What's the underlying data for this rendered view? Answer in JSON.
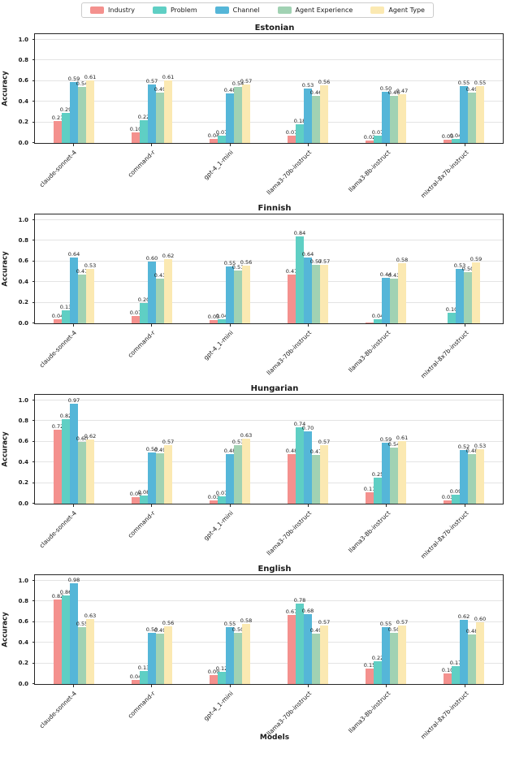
{
  "legend": {
    "entries": [
      {
        "label": "Industry",
        "color": "#F4918E"
      },
      {
        "label": "Problem",
        "color": "#5FCFC4"
      },
      {
        "label": "Channel",
        "color": "#55B6D8"
      },
      {
        "label": "Agent Experience",
        "color": "#A1D2B3"
      },
      {
        "label": "Agent Type",
        "color": "#FBE9B2"
      }
    ]
  },
  "figure": {
    "xlabel": "Models",
    "ylabel": "Accuracy",
    "ytick_labels": [
      "0.0",
      "0.2",
      "0.4",
      "0.6",
      "0.8",
      "1.0"
    ]
  },
  "chart_data": [
    {
      "type": "bar",
      "title": "Estonian",
      "xlabel": "",
      "ylabel": "Accuracy",
      "ylim": [
        0,
        1.05
      ],
      "grid": true,
      "legend_position": "top-center-outside",
      "categories": [
        "claude-sonnet-4",
        "command-r",
        "gpt-4_1-mini",
        "llama3-70b-instruct",
        "llama3-8b-instruct",
        "mixtral-8x7b-instruct"
      ],
      "series": [
        {
          "name": "Industry",
          "color": "#F4918E",
          "values": [
            0.21,
            0.1,
            0.04,
            0.07,
            0.02,
            0.03
          ]
        },
        {
          "name": "Problem",
          "color": "#5FCFC4",
          "values": [
            0.29,
            0.22,
            0.07,
            0.18,
            0.07,
            0.04
          ]
        },
        {
          "name": "Channel",
          "color": "#55B6D8",
          "values": [
            0.59,
            0.57,
            0.48,
            0.53,
            0.5,
            0.55
          ]
        },
        {
          "name": "Agent Experience",
          "color": "#A1D2B3",
          "values": [
            0.54,
            0.49,
            0.54,
            0.46,
            0.46,
            0.49
          ]
        },
        {
          "name": "Agent Type",
          "color": "#FBE9B2",
          "values": [
            0.61,
            0.61,
            0.57,
            0.56,
            0.47,
            0.55
          ]
        }
      ]
    },
    {
      "type": "bar",
      "title": "Finnish",
      "xlabel": "",
      "ylabel": "Accuracy",
      "ylim": [
        0,
        1.05
      ],
      "grid": true,
      "categories": [
        "claude-sonnet-4",
        "command-r",
        "gpt-4_1-mini",
        "llama3-70b-instruct",
        "llama3-8b-instruct",
        "mixtral-8x7b-instruct"
      ],
      "series": [
        {
          "name": "Industry",
          "color": "#F4918E",
          "values": [
            0.04,
            0.07,
            0.03,
            0.47,
            0.01,
            0.0
          ]
        },
        {
          "name": "Problem",
          "color": "#5FCFC4",
          "values": [
            0.13,
            0.2,
            0.04,
            0.84,
            0.04,
            0.1
          ]
        },
        {
          "name": "Channel",
          "color": "#55B6D8",
          "values": [
            0.64,
            0.6,
            0.55,
            0.64,
            0.44,
            0.53
          ]
        },
        {
          "name": "Agent Experience",
          "color": "#A1D2B3",
          "values": [
            0.47,
            0.43,
            0.51,
            0.57,
            0.43,
            0.5
          ]
        },
        {
          "name": "Agent Type",
          "color": "#FBE9B2",
          "values": [
            0.53,
            0.62,
            0.56,
            0.57,
            0.58,
            0.59
          ]
        }
      ]
    },
    {
      "type": "bar",
      "title": "Hungarian",
      "xlabel": "",
      "ylabel": "Accuracy",
      "ylim": [
        0,
        1.05
      ],
      "grid": true,
      "categories": [
        "claude-sonnet-4",
        "command-r",
        "gpt-4_1-mini",
        "llama3-70b-instruct",
        "llama3-8b-instruct",
        "mixtral-8x7b-instruct"
      ],
      "series": [
        {
          "name": "Industry",
          "color": "#F4918E",
          "values": [
            0.72,
            0.06,
            0.03,
            0.48,
            0.11,
            0.03
          ]
        },
        {
          "name": "Problem",
          "color": "#5FCFC4",
          "values": [
            0.82,
            0.08,
            0.07,
            0.74,
            0.25,
            0.09
          ]
        },
        {
          "name": "Channel",
          "color": "#55B6D8",
          "values": [
            0.97,
            0.5,
            0.48,
            0.7,
            0.59,
            0.52
          ]
        },
        {
          "name": "Agent Experience",
          "color": "#A1D2B3",
          "values": [
            0.6,
            0.49,
            0.57,
            0.47,
            0.54,
            0.48
          ]
        },
        {
          "name": "Agent Type",
          "color": "#FBE9B2",
          "values": [
            0.62,
            0.57,
            0.63,
            0.57,
            0.61,
            0.53
          ]
        }
      ]
    },
    {
      "type": "bar",
      "title": "English",
      "xlabel": "Models",
      "ylabel": "Accuracy",
      "ylim": [
        0,
        1.05
      ],
      "grid": true,
      "categories": [
        "claude-sonnet-4",
        "command-r",
        "gpt-4_1-mini",
        "llama3-70b-instruct",
        "llama3-8b-instruct",
        "mixtral-8x7b-instruct"
      ],
      "series": [
        {
          "name": "Industry",
          "color": "#F4918E",
          "values": [
            0.82,
            0.04,
            0.09,
            0.67,
            0.15,
            0.1
          ]
        },
        {
          "name": "Problem",
          "color": "#5FCFC4",
          "values": [
            0.86,
            0.13,
            0.12,
            0.78,
            0.22,
            0.17
          ]
        },
        {
          "name": "Channel",
          "color": "#55B6D8",
          "values": [
            0.98,
            0.5,
            0.55,
            0.68,
            0.55,
            0.62
          ]
        },
        {
          "name": "Agent Experience",
          "color": "#A1D2B3",
          "values": [
            0.55,
            0.49,
            0.5,
            0.49,
            0.5,
            0.48
          ]
        },
        {
          "name": "Agent Type",
          "color": "#FBE9B2",
          "values": [
            0.63,
            0.56,
            0.58,
            0.57,
            0.57,
            0.6
          ]
        }
      ]
    }
  ]
}
